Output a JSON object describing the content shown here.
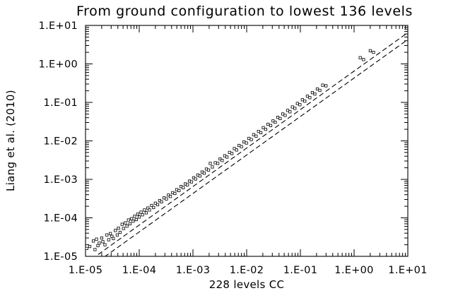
{
  "chart_data": {
    "type": "scatter",
    "title": "From ground configuration to lowest 136 levels",
    "xlabel": "228 levels CC",
    "ylabel": "Liang et al. (2010)",
    "x_scale": "log",
    "y_scale": "log",
    "xlim": [
      1e-05,
      10
    ],
    "ylim": [
      1e-05,
      10
    ],
    "x_tick_labels": [
      "1.E-05",
      "1.E-04",
      "1.E-03",
      "1.E-02",
      "1.E-01",
      "1.E+00",
      "1.E+01"
    ],
    "y_tick_labels": [
      "1.E-05",
      "1.E-04",
      "1.E-03",
      "1.E-02",
      "1.E-01",
      "1.E+00",
      "1.E+01"
    ],
    "grid": false,
    "legend": "none",
    "reference_lines": [
      {
        "style": "dashed",
        "points": [
          [
            1e-05,
            6.5e-06
          ],
          [
            10,
            6.5
          ]
        ]
      },
      {
        "style": "dashed",
        "points": [
          [
            1e-05,
            4.3e-06
          ],
          [
            10,
            4.3
          ]
        ]
      }
    ],
    "series": [
      {
        "marker": "open-square",
        "points": [
          [
            1.05e-05,
            1.6e-05
          ],
          [
            1.2e-05,
            1.8e-05
          ],
          [
            1.4e-05,
            2.5e-05
          ],
          [
            1.5e-05,
            1.5e-05
          ],
          [
            1.6e-05,
            2.8e-05
          ],
          [
            1.7e-05,
            1.9e-05
          ],
          [
            1.8e-05,
            2.2e-05
          ],
          [
            2e-05,
            3e-05
          ],
          [
            2.1e-05,
            2.4e-05
          ],
          [
            2.3e-05,
            2e-05
          ],
          [
            2.5e-05,
            3.6e-05
          ],
          [
            2.7e-05,
            2.7e-05
          ],
          [
            2.9e-05,
            3.9e-05
          ],
          [
            3.1e-05,
            3.3e-05
          ],
          [
            3.3e-05,
            2.9e-05
          ],
          [
            3.6e-05,
            4.7e-05
          ],
          [
            3.9e-05,
            3.6e-05
          ],
          [
            4.1e-05,
            5.4e-05
          ],
          [
            4.4e-05,
            4.2e-05
          ],
          [
            4.8e-05,
            6.8e-05
          ],
          [
            5.1e-05,
            5.3e-05
          ],
          [
            5.5e-05,
            7.4e-05
          ],
          [
            5.9e-05,
            6.1e-05
          ],
          [
            6.3e-05,
            8.8e-05
          ],
          [
            6.7e-05,
            7e-05
          ],
          [
            7.2e-05,
            9.5e-05
          ],
          [
            7.7e-05,
            8.2e-05
          ],
          [
            8.2e-05,
            0.00011
          ],
          [
            8.8e-05,
            9e-05
          ],
          [
            9.4e-05,
            0.000125
          ],
          [
            0.0001,
            0.000105
          ],
          [
            0.000108,
            0.00014
          ],
          [
            0.000115,
            0.00012
          ],
          [
            0.000125,
            0.00016
          ],
          [
            0.000135,
            0.000135
          ],
          [
            0.000145,
            0.00018
          ],
          [
            0.000155,
            0.00016
          ],
          [
            0.00017,
            0.00021
          ],
          [
            0.000185,
            0.000185
          ],
          [
            0.0002,
            0.00024
          ],
          [
            0.00022,
            0.00022
          ],
          [
            0.00024,
            0.00028
          ],
          [
            0.00026,
            0.00026
          ],
          [
            0.00029,
            0.00033
          ],
          [
            0.00032,
            0.00031
          ],
          [
            0.00035,
            0.00039
          ],
          [
            0.00038,
            0.00036
          ],
          [
            0.00042,
            0.00045
          ],
          [
            0.00046,
            0.00043
          ],
          [
            0.0005,
            0.00054
          ],
          [
            0.00055,
            0.00051
          ],
          [
            0.0006,
            0.00065
          ],
          [
            0.00066,
            0.00061
          ],
          [
            0.00072,
            0.00076
          ],
          [
            0.00079,
            0.00072
          ],
          [
            0.00086,
            0.0009
          ],
          [
            0.00094,
            0.00086
          ],
          [
            0.00103,
            0.0011
          ],
          [
            0.00112,
            0.00102
          ],
          [
            0.00123,
            0.0013
          ],
          [
            0.00135,
            0.00122
          ],
          [
            0.00148,
            0.00155
          ],
          [
            0.00162,
            0.00145
          ],
          [
            0.00178,
            0.00185
          ],
          [
            0.00195,
            0.00175
          ],
          [
            0.0021,
            0.0026
          ],
          [
            0.0023,
            0.0021
          ],
          [
            0.0026,
            0.0027
          ],
          [
            0.0029,
            0.0026
          ],
          [
            0.0032,
            0.0034
          ],
          [
            0.0035,
            0.0031
          ],
          [
            0.0039,
            0.0041
          ],
          [
            0.0043,
            0.0038
          ],
          [
            0.0048,
            0.005
          ],
          [
            0.0053,
            0.0047
          ],
          [
            0.0059,
            0.0063
          ],
          [
            0.0065,
            0.0058
          ],
          [
            0.0072,
            0.0076
          ],
          [
            0.008,
            0.0071
          ],
          [
            0.0089,
            0.0094
          ],
          [
            0.0099,
            0.0088
          ],
          [
            0.011,
            0.0116
          ],
          [
            0.0122,
            0.0108
          ],
          [
            0.0135,
            0.0145
          ],
          [
            0.015,
            0.0133
          ],
          [
            0.0166,
            0.0176
          ],
          [
            0.0184,
            0.0163
          ],
          [
            0.0204,
            0.022
          ],
          [
            0.0226,
            0.02
          ],
          [
            0.025,
            0.027
          ],
          [
            0.028,
            0.025
          ],
          [
            0.031,
            0.033
          ],
          [
            0.034,
            0.0305
          ],
          [
            0.038,
            0.041
          ],
          [
            0.042,
            0.038
          ],
          [
            0.047,
            0.05
          ],
          [
            0.052,
            0.046
          ],
          [
            0.058,
            0.062
          ],
          [
            0.064,
            0.057
          ],
          [
            0.071,
            0.076
          ],
          [
            0.079,
            0.07
          ],
          [
            0.088,
            0.094
          ],
          [
            0.098,
            0.087
          ],
          [
            0.109,
            0.117
          ],
          [
            0.121,
            0.108
          ],
          [
            0.135,
            0.145
          ],
          [
            0.15,
            0.133
          ],
          [
            0.167,
            0.18
          ],
          [
            0.186,
            0.165
          ],
          [
            0.207,
            0.223
          ],
          [
            0.23,
            0.205
          ],
          [
            0.26,
            0.28
          ],
          [
            0.3,
            0.27
          ],
          [
            1.3,
            1.45
          ],
          [
            1.5,
            1.3
          ],
          [
            2.0,
            2.2
          ],
          [
            2.3,
            2.0
          ]
        ]
      }
    ]
  }
}
